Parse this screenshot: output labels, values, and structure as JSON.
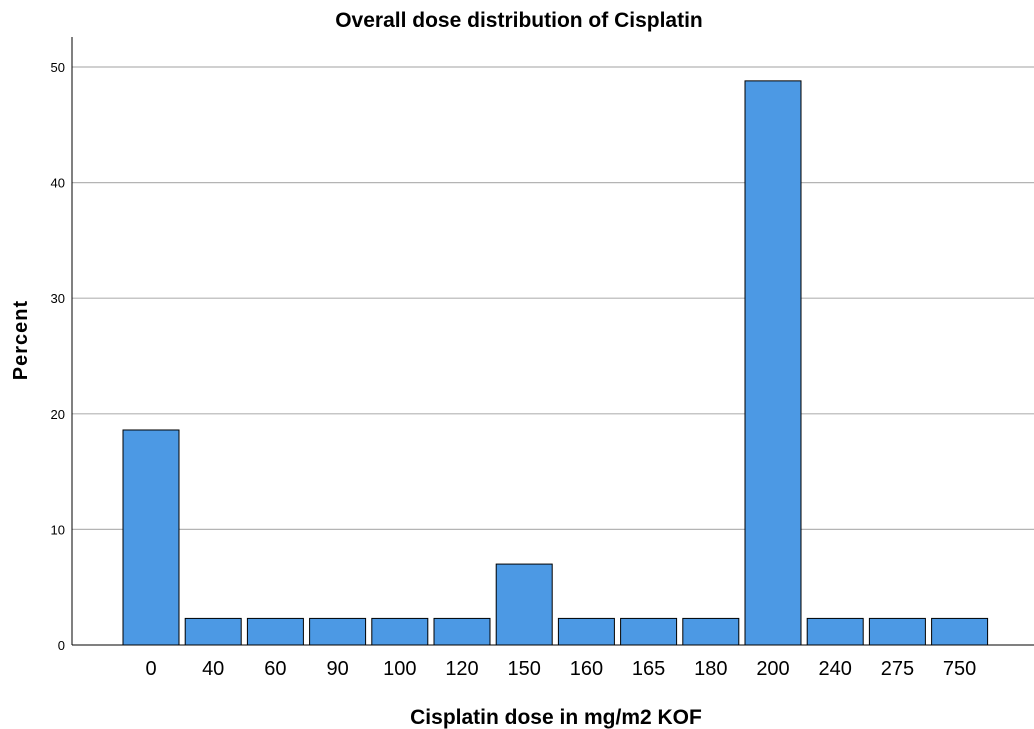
{
  "chart_data": {
    "type": "bar",
    "title": "Overall dose distribution of Cisplatin",
    "xlabel": "Cisplatin dose in mg/m2 KOF",
    "ylabel": "Percent",
    "categories": [
      "0",
      "40",
      "60",
      "90",
      "100",
      "120",
      "150",
      "160",
      "165",
      "180",
      "200",
      "240",
      "275",
      "750"
    ],
    "values": [
      18.6,
      2.3,
      2.3,
      2.3,
      2.3,
      2.3,
      7.0,
      2.3,
      2.3,
      2.3,
      48.8,
      2.3,
      2.3,
      2.3
    ],
    "ylim": [
      0,
      50
    ],
    "yticks": [
      0,
      10,
      20,
      30,
      40,
      50
    ],
    "grid": true,
    "bar_color": "#4c99e4"
  }
}
